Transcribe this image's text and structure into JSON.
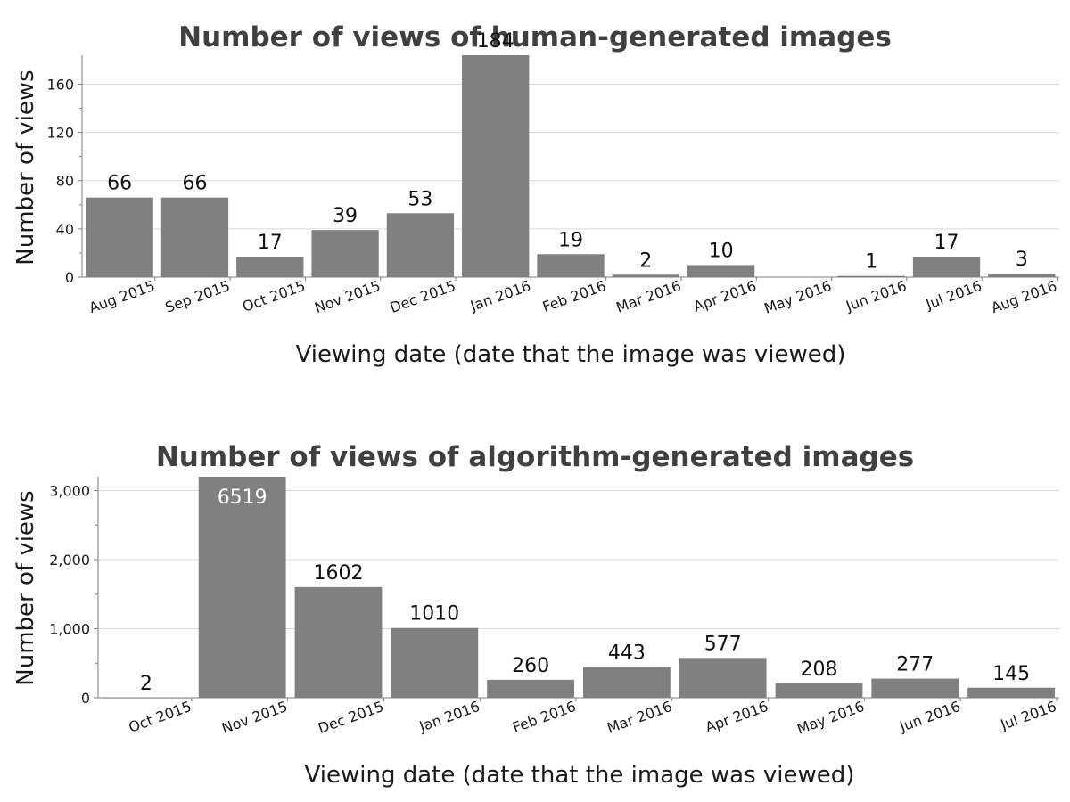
{
  "chart_data": [
    {
      "type": "bar",
      "title": "Number of views of human-generated images",
      "xlabel": "Viewing date (date that the image was viewed)",
      "ylabel": "Number of views",
      "ylim": [
        0,
        184
      ],
      "yticks": [
        0,
        40,
        80,
        120,
        160
      ],
      "ytick_labels": [
        "0",
        "40",
        "80",
        "120",
        "160"
      ],
      "grid": true,
      "bar_color": "#808080",
      "categories": [
        "Aug 2015",
        "Sep 2015",
        "Oct 2015",
        "Nov 2015",
        "Dec 2015",
        "Jan 2016",
        "Feb 2016",
        "Mar 2016",
        "Apr 2016",
        "May 2016",
        "Jun 2016",
        "Jul 2016",
        "Aug 2016"
      ],
      "values": [
        66,
        66,
        17,
        39,
        53,
        184,
        19,
        2,
        10,
        0,
        1,
        17,
        3
      ],
      "data_labels": [
        "66",
        "66",
        "17",
        "39",
        "53",
        "184",
        "19",
        "2",
        "10",
        "",
        "1",
        "17",
        "3"
      ]
    },
    {
      "type": "bar",
      "title": "Number of views of algorithm-generated images",
      "xlabel": "Viewing date (date that the image was viewed)",
      "ylabel": "Number of views",
      "ylim": [
        0,
        3200
      ],
      "yticks": [
        0,
        1000,
        2000,
        3000
      ],
      "ytick_labels": [
        "0",
        "1,000",
        "2,000",
        "3,000"
      ],
      "grid": true,
      "bar_color": "#808080",
      "categories": [
        "Oct 2015",
        "Nov 2015",
        "Dec 2015",
        "Jan 2016",
        "Feb 2016",
        "Mar 2016",
        "Apr 2016",
        "May 2016",
        "Jun 2016",
        "Jul 2016"
      ],
      "values": [
        2,
        6519,
        1602,
        1010,
        260,
        443,
        577,
        208,
        277,
        145
      ],
      "data_labels": [
        "2",
        "6519",
        "1602",
        "1010",
        "260",
        "443",
        "577",
        "208",
        "277",
        "145"
      ]
    }
  ]
}
